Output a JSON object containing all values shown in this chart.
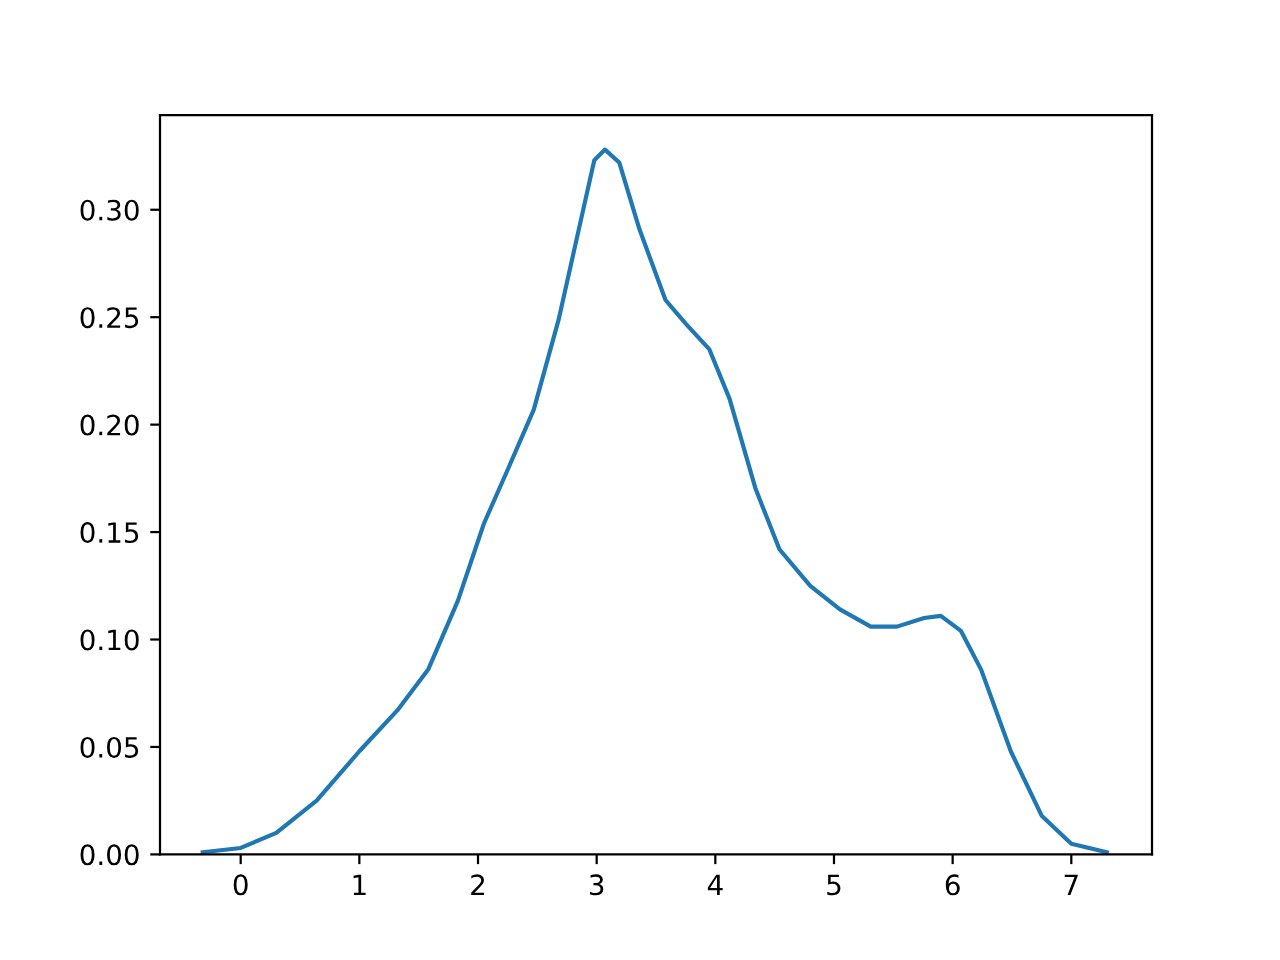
{
  "chart_data": {
    "type": "line",
    "x": [
      -0.32,
      0,
      0.3,
      0.64,
      1.0,
      1.32,
      1.58,
      1.83,
      2.05,
      2.25,
      2.47,
      2.68,
      2.85,
      2.98,
      3.07,
      3.19,
      3.36,
      3.58,
      3.75,
      3.95,
      4.12,
      4.34,
      4.54,
      4.8,
      5.05,
      5.31,
      5.53,
      5.76,
      5.9,
      6.07,
      6.24,
      6.49,
      6.75,
      7.0,
      7.3
    ],
    "series": [
      {
        "color": "#1f77b4",
        "values": [
          0.001,
          0.003,
          0.01,
          0.025,
          0.048,
          0.067,
          0.086,
          0.118,
          0.154,
          0.179,
          0.207,
          0.249,
          0.291,
          0.323,
          0.328,
          0.322,
          0.291,
          0.258,
          0.247,
          0.235,
          0.212,
          0.17,
          0.142,
          0.125,
          0.114,
          0.106,
          0.106,
          0.11,
          0.111,
          0.104,
          0.086,
          0.048,
          0.018,
          0.005,
          0.001
        ]
      }
    ],
    "xlim": [
      -0.68,
      7.68
    ],
    "xticks": [
      0,
      1,
      2,
      3,
      4,
      5,
      6,
      7
    ],
    "ylim": [
      0,
      0.344
    ],
    "yticks": [
      {
        "value": 0,
        "label": "0.00"
      },
      {
        "value": 0.05,
        "label": "0.05"
      },
      {
        "value": 0.1,
        "label": "0.10"
      },
      {
        "value": 0.15,
        "label": "0.15"
      },
      {
        "value": 0.2,
        "label": "0.20"
      },
      {
        "value": 0.25,
        "label": "0.25"
      },
      {
        "value": 0.3,
        "label": "0.30"
      }
    ],
    "grid": false,
    "legend": false,
    "marker": "none",
    "line_style": "solid"
  }
}
